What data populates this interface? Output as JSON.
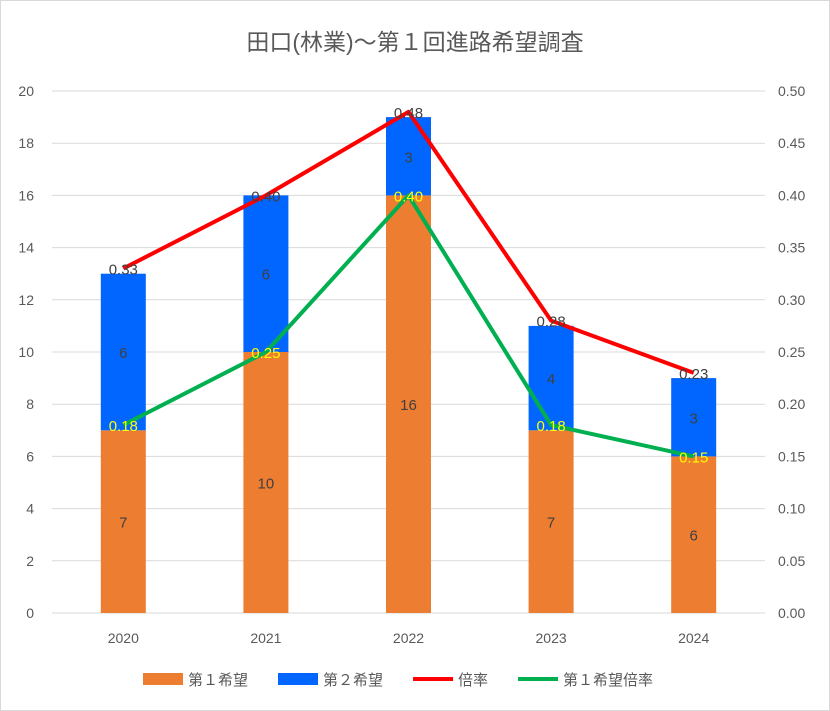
{
  "chart_data": {
    "type": "bar",
    "title": "田口(林業)～第１回進路希望調査",
    "categories": [
      "2020",
      "2021",
      "2022",
      "2023",
      "2024"
    ],
    "series": [
      {
        "name": "第１希望",
        "kind": "stacked-bar",
        "axis": "left",
        "color": "#ED7D31",
        "values": [
          7,
          10,
          16,
          7,
          6
        ],
        "labels": [
          "7",
          "10",
          "16",
          "7",
          "6"
        ]
      },
      {
        "name": "第２希望",
        "kind": "stacked-bar",
        "axis": "left",
        "color": "#0066FF",
        "values": [
          6,
          6,
          3,
          4,
          3
        ],
        "labels": [
          "6",
          "6",
          "3",
          "4",
          "3"
        ]
      },
      {
        "name": "倍率",
        "kind": "line",
        "axis": "right",
        "color": "#FF0000",
        "values": [
          0.33,
          0.4,
          0.48,
          0.28,
          0.23
        ],
        "labels": [
          "0.33",
          "0.40",
          "0.48",
          "0.28",
          "0.23"
        ]
      },
      {
        "name": "第１希望倍率",
        "kind": "line",
        "axis": "right",
        "color": "#00B050",
        "values": [
          0.18,
          0.25,
          0.4,
          0.18,
          0.15
        ],
        "labels": [
          "0.18",
          "0.25",
          "0.40",
          "0.18",
          "0.15"
        ]
      }
    ],
    "ylim": [
      0,
      20
    ],
    "y2lim": [
      0,
      0.5
    ],
    "yticks": [
      "0",
      "2",
      "4",
      "6",
      "8",
      "10",
      "12",
      "14",
      "16",
      "18",
      "20"
    ],
    "y2ticks": [
      "0.00",
      "0.05",
      "0.10",
      "0.15",
      "0.20",
      "0.25",
      "0.30",
      "0.35",
      "0.40",
      "0.45",
      "0.50"
    ],
    "grid": true,
    "legend": "bottom"
  }
}
